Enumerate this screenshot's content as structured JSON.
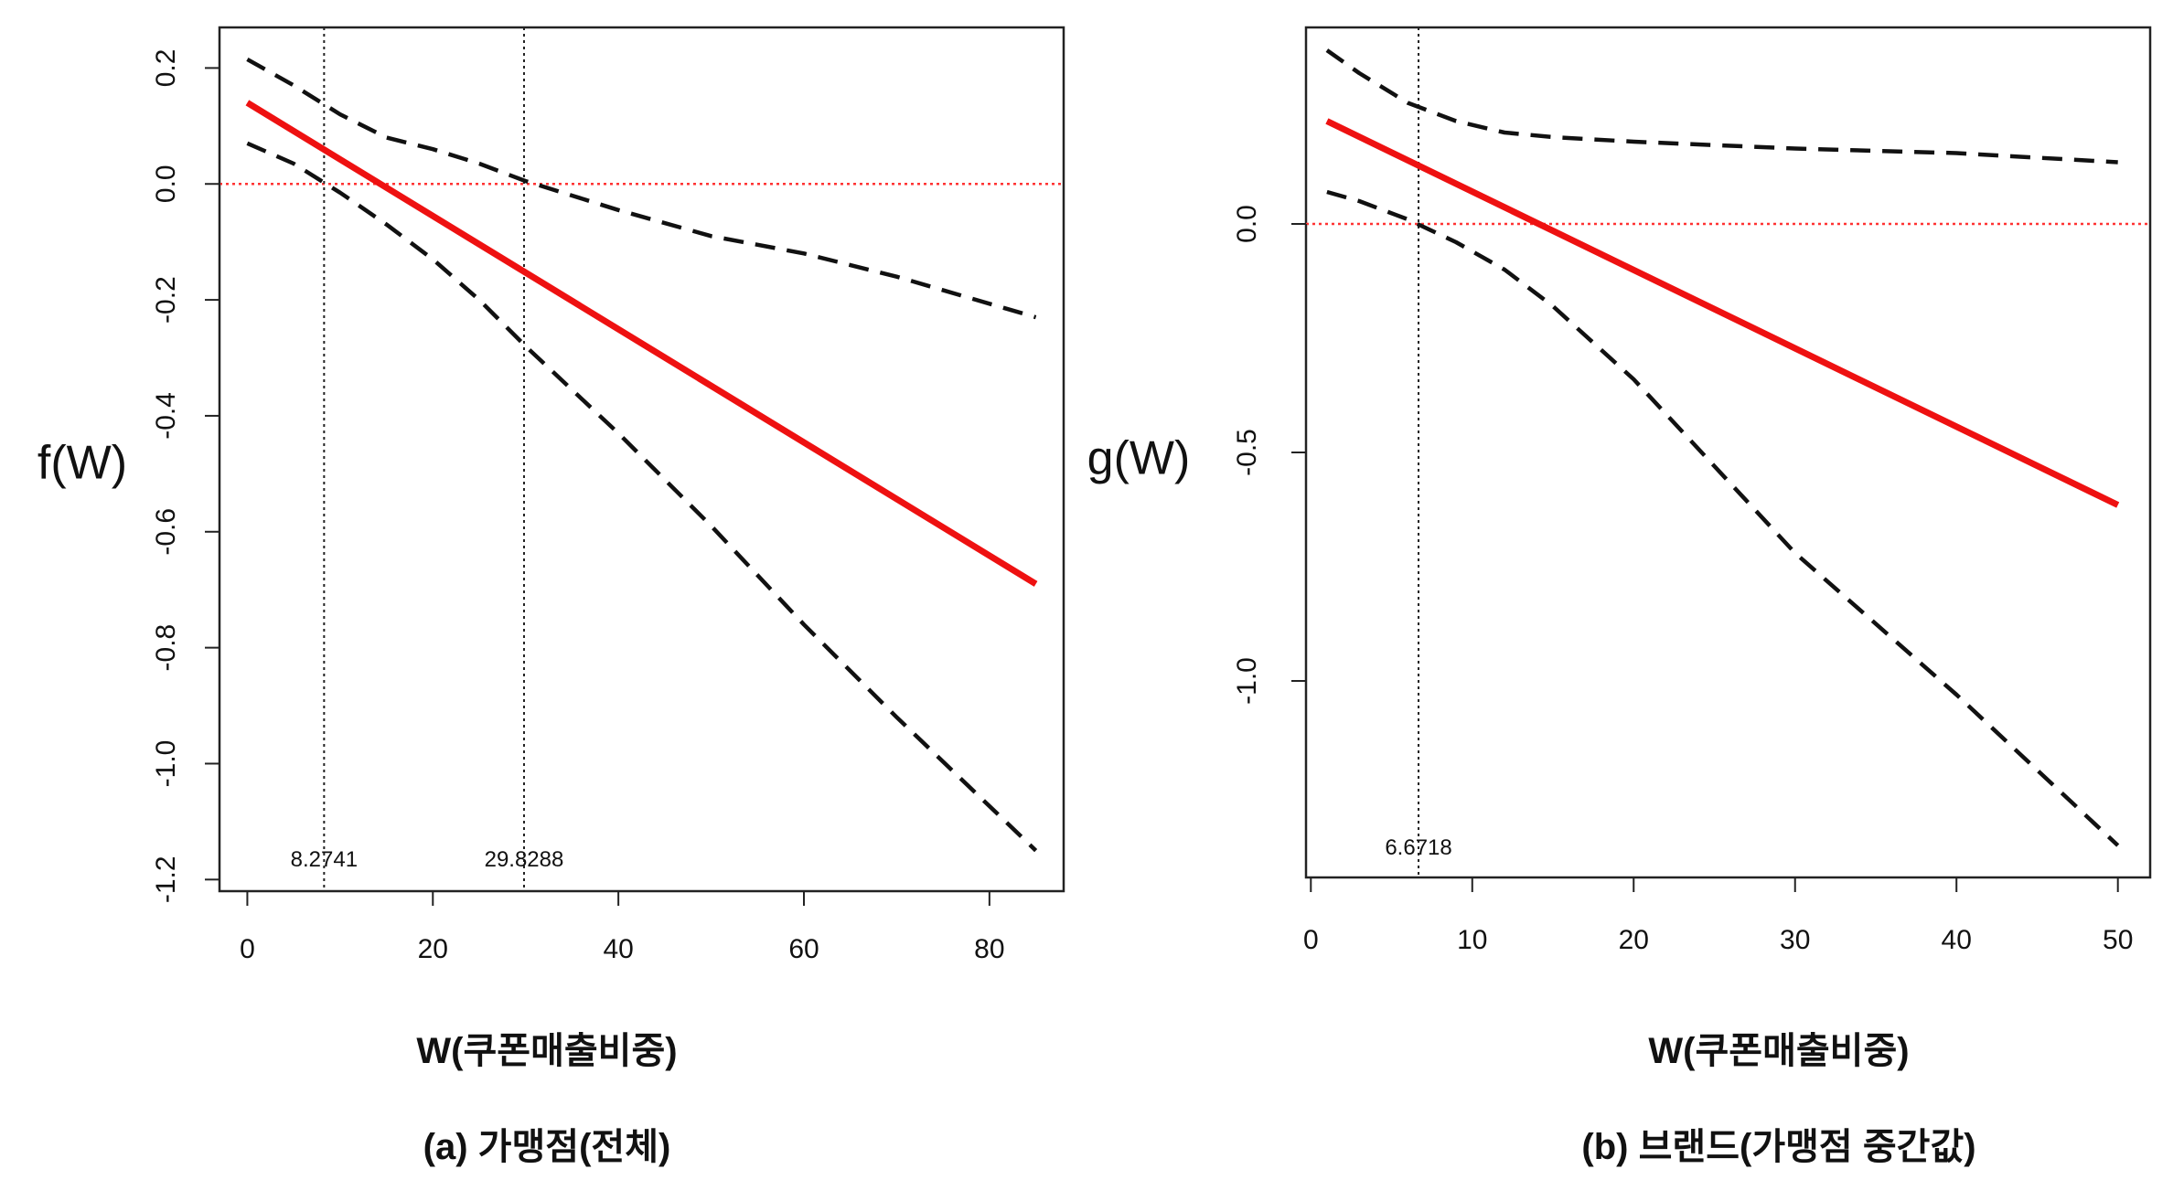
{
  "chart_data": [
    {
      "type": "line",
      "panel": "a",
      "caption": "(a) 가맹점(전체)",
      "xlabel": "W(쿠폰매출비중)",
      "ylabel": "f(W)",
      "xlim": [
        -3,
        88
      ],
      "ylim": [
        -1.22,
        0.27
      ],
      "xticks": [
        0,
        20,
        40,
        60,
        80
      ],
      "yticks": [
        0.2,
        0.0,
        -0.2,
        -0.4,
        -0.6,
        -0.8,
        -1.0,
        -1.2
      ],
      "ytick_labels": [
        "0.2",
        "0.0",
        "-0.2",
        "-0.4",
        "-0.6",
        "-0.8",
        "-1.0",
        "-1.2"
      ],
      "grid": false,
      "zero_line": {
        "y": 0.0,
        "color": "#ff3333",
        "style": "dotted"
      },
      "vertical_lines": [
        {
          "x": 8.2741,
          "label": "8.2741"
        },
        {
          "x": 29.8288,
          "label": "29.8288"
        }
      ],
      "series": [
        {
          "role": "estimate",
          "color": "#ee1111",
          "style": "solid",
          "x": [
            0,
            85
          ],
          "y": [
            0.14,
            -0.69
          ]
        },
        {
          "role": "upper-bound",
          "color": "#111111",
          "style": "dashed",
          "x": [
            0,
            5,
            10,
            15,
            20,
            25,
            30,
            40,
            50,
            60,
            70,
            85
          ],
          "y": [
            0.215,
            0.17,
            0.12,
            0.08,
            0.06,
            0.035,
            0.005,
            -0.045,
            -0.09,
            -0.12,
            -0.16,
            -0.23
          ]
        },
        {
          "role": "lower-bound",
          "color": "#111111",
          "style": "dashed",
          "x": [
            0,
            5,
            10,
            15,
            20,
            25,
            30,
            40,
            50,
            60,
            70,
            85
          ],
          "y": [
            0.07,
            0.035,
            -0.015,
            -0.07,
            -0.13,
            -0.2,
            -0.28,
            -0.43,
            -0.59,
            -0.76,
            -0.92,
            -1.15
          ]
        }
      ]
    },
    {
      "type": "line",
      "panel": "b",
      "caption": "(b) 브랜드(가맹점 중간값)",
      "xlabel": "W(쿠폰매출비중)",
      "ylabel": "g(W)",
      "xlim": [
        -0.3,
        52
      ],
      "ylim": [
        -1.43,
        0.43
      ],
      "xticks": [
        0,
        10,
        20,
        30,
        40,
        50
      ],
      "yticks": [
        0.0,
        -0.5,
        -1.0
      ],
      "ytick_labels": [
        "0.0",
        "-0.5",
        "-1.0"
      ],
      "grid": false,
      "zero_line": {
        "y": 0.0,
        "color": "#ff3333",
        "style": "dotted"
      },
      "vertical_lines": [
        {
          "x": 6.6718,
          "label": "6.6718"
        }
      ],
      "series": [
        {
          "role": "estimate",
          "color": "#ee1111",
          "style": "solid",
          "x": [
            1,
            50
          ],
          "y": [
            0.225,
            -0.615
          ]
        },
        {
          "role": "upper-bound",
          "color": "#111111",
          "style": "dashed",
          "x": [
            1,
            3,
            6,
            9,
            12,
            15,
            20,
            30,
            40,
            50
          ],
          "y": [
            0.38,
            0.33,
            0.265,
            0.225,
            0.2,
            0.19,
            0.18,
            0.165,
            0.155,
            0.135
          ]
        },
        {
          "role": "lower-bound",
          "color": "#111111",
          "style": "dashed",
          "x": [
            1,
            3,
            6,
            9,
            12,
            15,
            20,
            25,
            30,
            40,
            50
          ],
          "y": [
            0.07,
            0.05,
            0.01,
            -0.04,
            -0.1,
            -0.18,
            -0.34,
            -0.53,
            -0.72,
            -1.03,
            -1.36
          ]
        }
      ]
    }
  ]
}
